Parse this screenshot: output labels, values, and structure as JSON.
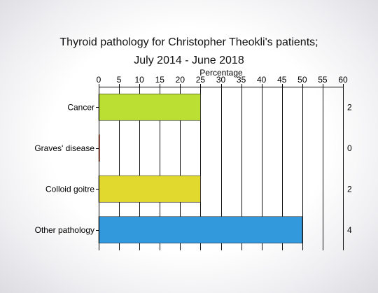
{
  "chart_data": {
    "type": "bar",
    "orientation": "horizontal",
    "title": [
      "Thyroid pathology for Christopher Theokli's patients;",
      "July 2014 - June 2018"
    ],
    "xlabel": "Percentage",
    "xlim": [
      0,
      60
    ],
    "xticks": [
      0,
      5,
      10,
      15,
      20,
      25,
      30,
      35,
      40,
      45,
      50,
      55,
      60
    ],
    "grid": true,
    "categories": [
      "Cancer",
      "Graves' disease",
      "Colloid goitre",
      "Other pathology"
    ],
    "values": [
      25,
      0,
      25,
      50
    ],
    "counts": [
      "2",
      "0",
      "2",
      "4"
    ],
    "colors": [
      "#bbe033",
      "#b5442c",
      "#e2d92f",
      "#3399dd"
    ]
  }
}
